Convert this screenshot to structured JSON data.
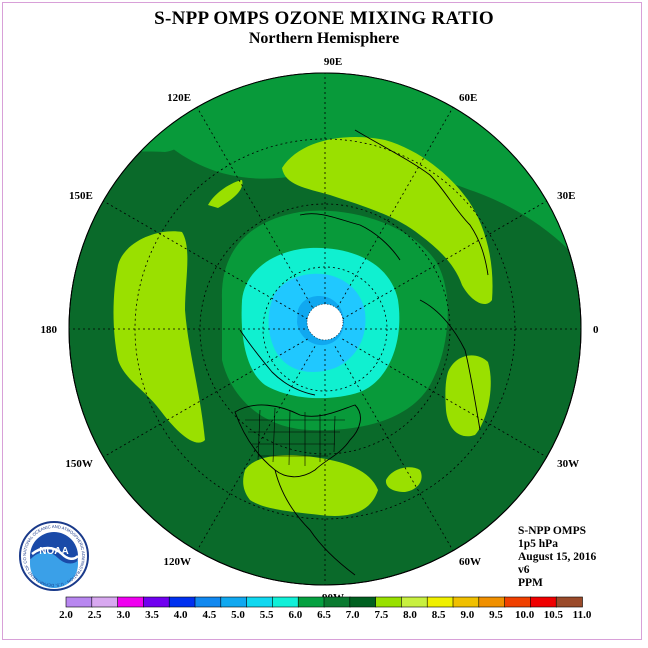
{
  "title": "S-NPP OMPS OZONE MIXING RATIO",
  "subtitle": "Northern Hemisphere",
  "longitude_labels": [
    "90E",
    "60E",
    "30E",
    "0",
    "30W",
    "60W",
    "90W",
    "120W",
    "150W",
    "180",
    "150E",
    "120E"
  ],
  "info": {
    "instrument": "S-NPP OMPS",
    "level": "1p5 hPa",
    "date": "August 15, 2016",
    "version": "v6",
    "units": "PPM"
  },
  "logo": {
    "text": "NOAA",
    "ring_text": "NATIONAL OCEANIC AND ATMOSPHERIC ADMINISTRATION · U.S. DEPARTMENT OF COMMERCE"
  },
  "colorbar": {
    "labels": [
      "2.0",
      "2.5",
      "3.0",
      "3.5",
      "4.0",
      "4.5",
      "5.0",
      "5.5",
      "6.0",
      "6.5",
      "7.0",
      "7.5",
      "8.0",
      "8.5",
      "9.0",
      "9.5",
      "10.0",
      "10.5",
      "11.0"
    ],
    "colors": [
      "#b887f0",
      "#d8a8f0",
      "#f000f0",
      "#7000f0",
      "#0030f0",
      "#1088f0",
      "#10a8f0",
      "#10d8f0",
      "#10f0d8",
      "#05a040",
      "#0a7a30",
      "#006020",
      "#98e000",
      "#c8f040",
      "#f0f000",
      "#f0c000",
      "#f09000",
      "#f04000",
      "#f00000",
      "#9a4a2a"
    ]
  },
  "colors": {
    "outer_field": "#0a6a2a",
    "band_6_5": "#089a3a",
    "band_7_5": "#9ae000",
    "band_6": "#10f0d0",
    "band_5_5": "#18d0ff",
    "band_5": "#10a8f0"
  }
}
